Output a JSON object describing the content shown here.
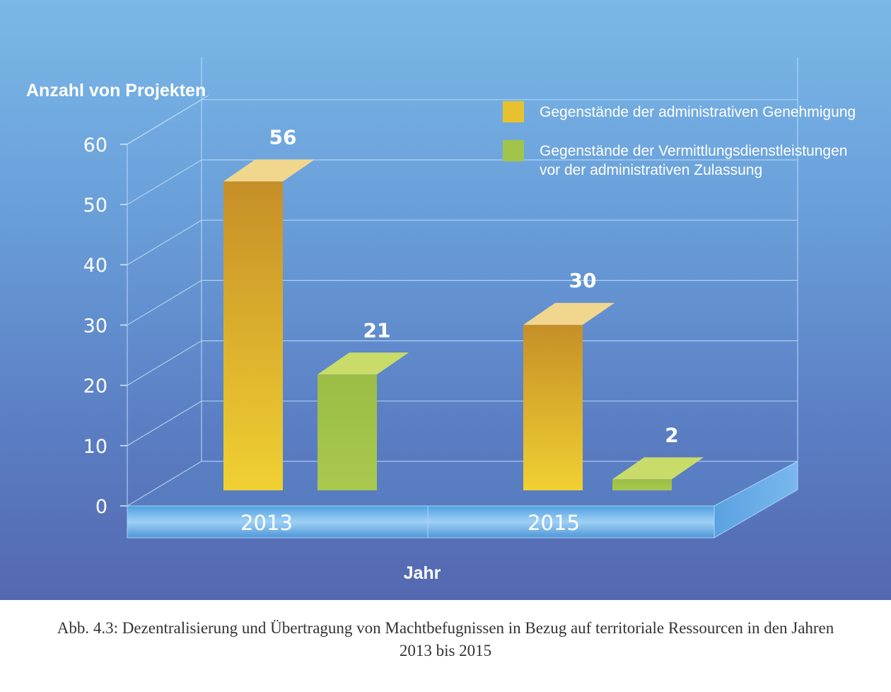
{
  "chart_data": {
    "type": "bar",
    "ylabel": "Anzahl von Projekten",
    "xlabel": "Jahr",
    "ylim": [
      0,
      60
    ],
    "yticks": [
      0,
      10,
      20,
      30,
      40,
      50,
      60
    ],
    "categories": [
      "2013",
      "2015"
    ],
    "series": [
      {
        "name": "Gegenstände der administrativen Genehmigung",
        "values": [
          56,
          30
        ],
        "color": "#e8c22e"
      },
      {
        "name_lines": [
          "Gegenstände der Vermittlungsdienstleistungen",
          "vor der administrativen Zulassung"
        ],
        "name": "Gegenstände der Vermittlungsdienstleistungen vor der administrativen Zulassung",
        "values": [
          21,
          2
        ],
        "color": "#a3c44a"
      }
    ],
    "grid": true,
    "legend": "top-right"
  },
  "caption": {
    "line1": "Abb. 4.3: Dezentralisierung und Übertragung von Machtbefugnissen in Bezug auf territoriale Ressourcen in den Jahren",
    "line2": "2013 bis 2015"
  }
}
